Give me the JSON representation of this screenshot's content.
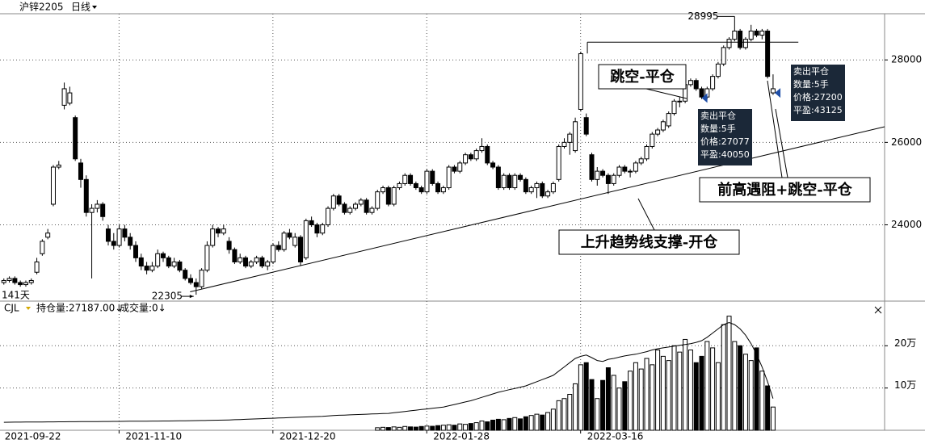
{
  "chart_data": [
    {
      "type": "candlestick",
      "title": "沪锌2205",
      "period": "日线",
      "day_count": "141天",
      "high_label": 28995,
      "low_label": 22305,
      "up_color": "#ffffff",
      "down_color": "#000000",
      "trade_color": "#1f4fa8",
      "grid": true,
      "xlim": [
        -0.7,
        160.3
      ],
      "ylim": [
        22150,
        29120
      ],
      "yticks": [
        24000,
        26000,
        28000
      ],
      "xticks": [
        {
          "value": 0,
          "label": "2021-09-22"
        },
        {
          "value": 22,
          "label": "2021-11-10"
        },
        {
          "value": 50,
          "label": "2021-12-20"
        },
        {
          "value": 78,
          "label": "2022-01-28"
        },
        {
          "value": 106,
          "label": "2022-03-16"
        }
      ],
      "candles": [
        [
          22600,
          22700,
          22550,
          22650
        ],
        [
          22650,
          22750,
          22600,
          22700
        ],
        [
          22700,
          22750,
          22550,
          22600
        ],
        [
          22600,
          22650,
          22500,
          22550
        ],
        [
          22550,
          22650,
          22500,
          22600
        ],
        [
          22600,
          22700,
          22550,
          22650
        ],
        [
          22850,
          23200,
          22800,
          23100
        ],
        [
          23300,
          23650,
          23250,
          23600
        ],
        [
          23700,
          23900,
          23650,
          23800
        ],
        [
          24500,
          25450,
          24450,
          25400
        ],
        [
          25400,
          25550,
          25350,
          25450
        ],
        [
          26900,
          27450,
          26800,
          27300
        ],
        [
          26950,
          27350,
          26900,
          27200
        ],
        [
          26600,
          26650,
          25550,
          25600
        ],
        [
          25500,
          25600,
          24900,
          25100
        ],
        [
          25100,
          25200,
          24200,
          24300
        ],
        [
          24300,
          24500,
          22700,
          24400
        ],
        [
          24400,
          24600,
          24300,
          24500
        ],
        [
          24500,
          24550,
          24100,
          24200
        ],
        [
          23900,
          24000,
          23500,
          23600
        ],
        [
          23600,
          23800,
          23400,
          23500
        ],
        [
          23500,
          24000,
          23450,
          23900
        ],
        [
          23900,
          24000,
          23600,
          23700
        ],
        [
          23700,
          23800,
          23400,
          23500
        ],
        [
          23500,
          23600,
          23100,
          23200
        ],
        [
          23200,
          23300,
          22900,
          23000
        ],
        [
          23000,
          23100,
          22800,
          22900
        ],
        [
          22900,
          23100,
          22850,
          23000
        ],
        [
          23000,
          23400,
          22950,
          23300
        ],
        [
          23300,
          23350,
          23100,
          23200
        ],
        [
          23200,
          23250,
          22950,
          23000
        ],
        [
          23000,
          23200,
          22950,
          23100
        ],
        [
          23100,
          23150,
          22850,
          22900
        ],
        [
          22900,
          22950,
          22650,
          22700
        ],
        [
          22700,
          22800,
          22550,
          22600
        ],
        [
          22600,
          22700,
          22305,
          22500
        ],
        [
          22500,
          22950,
          22450,
          22900
        ],
        [
          22900,
          23600,
          22850,
          23500
        ],
        [
          23500,
          24000,
          23450,
          23900
        ],
        [
          23900,
          23950,
          23700,
          23800
        ],
        [
          23800,
          24000,
          23750,
          23900
        ],
        [
          23600,
          23700,
          23300,
          23400
        ],
        [
          23400,
          23450,
          23050,
          23100
        ],
        [
          23100,
          23300,
          23050,
          23200
        ],
        [
          23200,
          23250,
          22950,
          23000
        ],
        [
          23000,
          23150,
          22950,
          23100
        ],
        [
          23100,
          23250,
          23050,
          23200
        ],
        [
          23200,
          23250,
          22950,
          23000
        ],
        [
          23000,
          23150,
          22900,
          23100
        ],
        [
          23100,
          23550,
          23050,
          23500
        ],
        [
          23500,
          23600,
          23350,
          23400
        ],
        [
          23400,
          23850,
          23350,
          23800
        ],
        [
          23800,
          23900,
          23650,
          23700
        ],
        [
          23500,
          23800,
          23450,
          23700
        ],
        [
          23700,
          23750,
          23000,
          23100
        ],
        [
          23200,
          24150,
          23150,
          24100
        ],
        [
          24100,
          24200,
          23950,
          24000
        ],
        [
          24000,
          24050,
          23700,
          23800
        ],
        [
          23800,
          24050,
          23750,
          24000
        ],
        [
          24000,
          24450,
          23950,
          24400
        ],
        [
          24400,
          24750,
          24350,
          24700
        ],
        [
          24700,
          24750,
          24450,
          24500
        ],
        [
          24500,
          24550,
          24250,
          24300
        ],
        [
          24300,
          24450,
          24250,
          24400
        ],
        [
          24400,
          24550,
          24350,
          24500
        ],
        [
          24500,
          24650,
          24450,
          24600
        ],
        [
          24600,
          24650,
          24250,
          24300
        ],
        [
          24300,
          24450,
          24250,
          24400
        ],
        [
          24400,
          24850,
          24350,
          24800
        ],
        [
          24800,
          24950,
          24750,
          24900
        ],
        [
          24900,
          24950,
          24450,
          24500
        ],
        [
          24500,
          24950,
          24450,
          24900
        ],
        [
          24900,
          25050,
          24850,
          25000
        ],
        [
          25000,
          25250,
          24950,
          25200
        ],
        [
          25200,
          25250,
          24950,
          25000
        ],
        [
          25000,
          25050,
          24850,
          24900
        ],
        [
          24900,
          24950,
          24750,
          24800
        ],
        [
          24800,
          25350,
          24750,
          25300
        ],
        [
          25300,
          25350,
          24950,
          25000
        ],
        [
          25000,
          25050,
          24750,
          24800
        ],
        [
          24800,
          24950,
          24750,
          24900
        ],
        [
          24900,
          25450,
          24850,
          25400
        ],
        [
          25400,
          25450,
          25250,
          25300
        ],
        [
          25300,
          25550,
          25250,
          25500
        ],
        [
          25500,
          25750,
          25450,
          25700
        ],
        [
          25700,
          25750,
          25550,
          25600
        ],
        [
          25600,
          25850,
          25550,
          25800
        ],
        [
          25800,
          26100,
          25750,
          25900
        ],
        [
          25900,
          25950,
          25450,
          25500
        ],
        [
          25500,
          25550,
          25350,
          25400
        ],
        [
          25400,
          25450,
          24850,
          24900
        ],
        [
          24900,
          25250,
          24850,
          25200
        ],
        [
          25200,
          25250,
          24850,
          24900
        ],
        [
          24900,
          25250,
          24850,
          25200
        ],
        [
          25200,
          25250,
          25050,
          25100
        ],
        [
          25100,
          25150,
          24750,
          24800
        ],
        [
          24800,
          24950,
          24750,
          24900
        ],
        [
          24900,
          25050,
          24650,
          25000
        ],
        [
          25000,
          25050,
          24650,
          24700
        ],
        [
          24700,
          24850,
          24650,
          24800
        ],
        [
          24800,
          25050,
          24750,
          25000
        ],
        [
          25100,
          25950,
          25050,
          25900
        ],
        [
          25900,
          26100,
          25850,
          26000
        ],
        [
          26000,
          26250,
          25700,
          26200
        ],
        [
          25800,
          26600,
          25750,
          26500
        ],
        [
          26800,
          28200,
          26750,
          28150
        ],
        [
          26600,
          26700,
          26150,
          26200
        ],
        [
          25700,
          25750,
          25050,
          25100
        ],
        [
          25100,
          25400,
          24950,
          25300
        ],
        [
          25300,
          25350,
          25150,
          25200
        ],
        [
          25200,
          25250,
          24750,
          25000
        ],
        [
          25000,
          25250,
          24950,
          25200
        ],
        [
          25200,
          25450,
          25150,
          25400
        ],
        [
          25400,
          25450,
          25250,
          25300
        ],
        [
          25300,
          25350,
          25150,
          25300
        ],
        [
          25300,
          25550,
          25250,
          25500
        ],
        [
          25500,
          25650,
          25450,
          25600
        ],
        [
          25600,
          25950,
          25550,
          25900
        ],
        [
          25900,
          26250,
          25850,
          26200
        ],
        [
          26200,
          26350,
          26150,
          26300
        ],
        [
          26300,
          26550,
          26250,
          26500
        ],
        [
          26400,
          26750,
          26350,
          26700
        ],
        [
          26700,
          27050,
          26650,
          27000
        ],
        [
          27000,
          27100,
          26850,
          27000
        ],
        [
          27000,
          27450,
          26950,
          27400
        ],
        [
          27400,
          27550,
          27350,
          27500
        ],
        [
          27500,
          27550,
          27250,
          27300
        ],
        [
          27300,
          27350,
          27050,
          27100
        ],
        [
          27100,
          27350,
          27050,
          27300
        ],
        [
          27300,
          27650,
          27250,
          27600
        ],
        [
          27600,
          27950,
          27550,
          27900
        ],
        [
          27900,
          28350,
          27850,
          28300
        ],
        [
          28300,
          28550,
          28250,
          28500
        ],
        [
          28500,
          28995,
          28450,
          28700
        ],
        [
          28700,
          28750,
          28250,
          28300
        ],
        [
          28300,
          28550,
          28250,
          28500
        ],
        [
          28500,
          28850,
          28450,
          28700
        ],
        [
          28700,
          28750,
          28550,
          28600
        ],
        [
          28600,
          28750,
          28500,
          28700
        ],
        [
          28700,
          28750,
          27550,
          27600
        ],
        [
          27200,
          27650,
          27150,
          27300
        ]
      ],
      "trendline": {
        "x": [
          33.9,
          160.3
        ],
        "y": [
          22375,
          26379
        ]
      },
      "resistance": {
        "x": [
          106.2,
          144.6
        ],
        "y": 28430
      },
      "notes": [
        "跳空-平仓",
        "前高遇阻+跳空-平仓",
        "上升趋势线支撑-开仓"
      ],
      "trades": [
        {
          "x": 127.6,
          "price": 27077,
          "lines": [
            "卖出平仓",
            "数量:5手",
            "价格:27077",
            "平盈:40050"
          ]
        },
        {
          "x": 140.9,
          "price": 27200,
          "lines": [
            "卖出平仓",
            "数量:5手",
            "价格:27200",
            "平盈:43125"
          ]
        }
      ]
    },
    {
      "type": "volume",
      "title": "CJL",
      "indicators": [
        "持仓量:27187.00↓",
        "成交量:0↓"
      ],
      "xlim": [
        -0.7,
        160.3
      ],
      "ylim": [
        0,
        298000
      ],
      "yticks": [
        {
          "value": 100000,
          "label": "10万"
        },
        {
          "value": 200000,
          "label": "20万"
        }
      ],
      "line_color": "#000000",
      "volume": [
        null,
        null,
        null,
        null,
        null,
        null,
        null,
        null,
        null,
        null,
        null,
        null,
        null,
        null,
        null,
        null,
        null,
        null,
        null,
        null,
        null,
        null,
        null,
        null,
        null,
        null,
        null,
        null,
        null,
        null,
        null,
        null,
        null,
        null,
        null,
        null,
        null,
        null,
        null,
        null,
        null,
        null,
        null,
        null,
        null,
        null,
        null,
        null,
        null,
        null,
        null,
        null,
        null,
        null,
        null,
        null,
        null,
        null,
        null,
        null,
        null,
        null,
        null,
        null,
        null,
        null,
        null,
        null,
        6000,
        7000,
        6500,
        8000,
        7000,
        9000,
        8000,
        7500,
        9000,
        10000,
        9500,
        11000,
        12000,
        13000,
        12000,
        15000,
        14000,
        16000,
        18000,
        22000,
        20000,
        24000,
        26000,
        25000,
        28000,
        30000,
        27000,
        32000,
        35000,
        38000,
        36000,
        42000,
        50000,
        70000,
        75000,
        85000,
        110000,
        155000,
        160000,
        120000,
        75000,
        118000,
        148000,
        130000,
        100000,
        115000,
        140000,
        160000,
        145000,
        170000,
        155000,
        190000,
        175000,
        165000,
        200000,
        185000,
        215000,
        190000,
        160000,
        175000,
        210000,
        195000,
        160000,
        250000,
        270000,
        210000,
        200000,
        180000,
        165000,
        195000,
        140000,
        105000,
        55000
      ],
      "open_interest": [
        19000,
        19100,
        19200,
        19300,
        19400,
        19500,
        19600,
        19700,
        19800,
        19900,
        20000,
        20100,
        20200,
        20300,
        20400,
        20500,
        20600,
        20700,
        20800,
        20900,
        21000,
        21100,
        21200,
        21300,
        21400,
        21500,
        21600,
        21700,
        21800,
        21900,
        22000,
        22200,
        22400,
        22600,
        22800,
        23000,
        23200,
        23400,
        23600,
        23800,
        24000,
        24500,
        25000,
        25500,
        26000,
        26500,
        27000,
        27500,
        28000,
        28500,
        29000,
        29500,
        30000,
        30500,
        31000,
        31500,
        32000,
        32500,
        33000,
        34000,
        35000,
        35500,
        36000,
        36500,
        37000,
        37500,
        38000,
        38500,
        39000,
        39500,
        40000,
        41500,
        43000,
        44500,
        46000,
        47500,
        49000,
        50500,
        52000,
        53500,
        55000,
        58000,
        61000,
        64000,
        67000,
        70000,
        74000,
        78000,
        82000,
        86000,
        90000,
        93000,
        96000,
        99000,
        102000,
        105000,
        110000,
        115000,
        120000,
        125000,
        130000,
        140000,
        150000,
        160000,
        170000,
        175000,
        178000,
        172000,
        165000,
        163000,
        168000,
        170000,
        173000,
        176000,
        178000,
        180000,
        183000,
        186000,
        190000,
        193000,
        195000,
        197000,
        199000,
        201000,
        203000,
        205000,
        208000,
        212000,
        220000,
        230000,
        240000,
        250000,
        255000,
        250000,
        240000,
        225000,
        205000,
        180000,
        150000,
        115000,
        75000
      ]
    }
  ]
}
